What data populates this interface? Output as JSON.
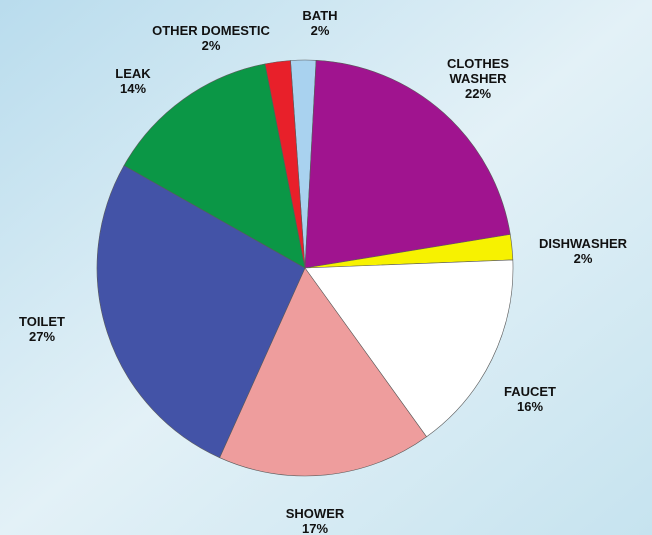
{
  "chart_data": {
    "type": "pie",
    "slices": [
      {
        "label": [
          "BATH"
        ],
        "value": 2,
        "value_label": "2%",
        "color": "#a9d2ef"
      },
      {
        "label": [
          "CLOTHES",
          "WASHER"
        ],
        "value": 22,
        "value_label": "22%",
        "color": "#a0148f"
      },
      {
        "label": [
          "DISHWASHER"
        ],
        "value": 2,
        "value_label": "2%",
        "color": "#f7f200"
      },
      {
        "label": [
          "FAUCET"
        ],
        "value": 16,
        "value_label": "16%",
        "color": "#ffffff"
      },
      {
        "label": [
          "SHOWER"
        ],
        "value": 17,
        "value_label": "17%",
        "color": "#ee9d9d"
      },
      {
        "label": [
          "TOILET"
        ],
        "value": 27,
        "value_label": "27%",
        "color": "#4353a7"
      },
      {
        "label": [
          "LEAK"
        ],
        "value": 14,
        "value_label": "14%",
        "color": "#0b9746"
      },
      {
        "label": [
          "OTHER DOMESTIC"
        ],
        "value": 2,
        "value_label": "2%",
        "color": "#e8202a"
      }
    ],
    "start_angle_deg": -4,
    "direction": "clockwise",
    "legend": "none (labels placed outside slices)",
    "background_colors": [
      "#b9dced",
      "#e3f1f7",
      "#c6e3ef"
    ]
  }
}
